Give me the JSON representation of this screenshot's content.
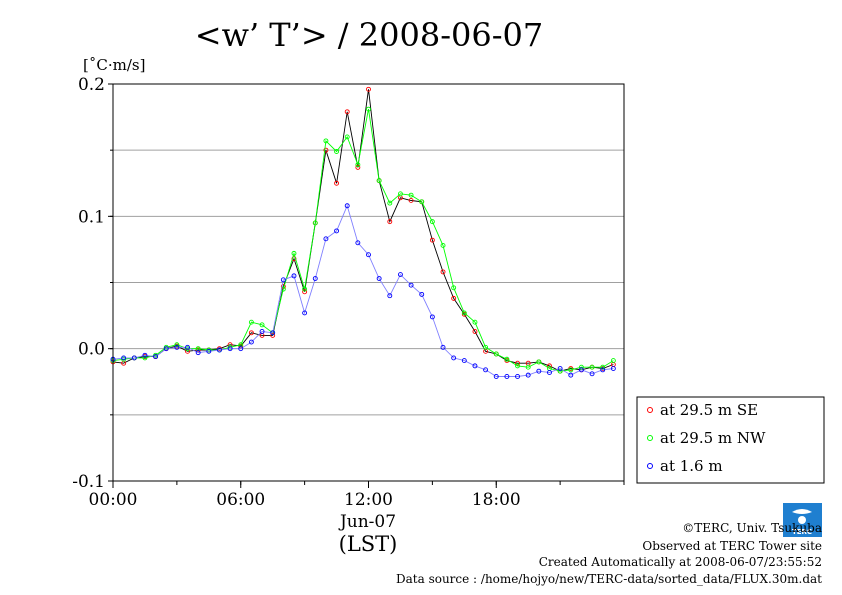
{
  "chart_data": {
    "type": "line",
    "title": "<w’ T’> / 2008-06-07",
    "unit_label": "[˚C·m/s]",
    "ylim": [
      -0.1,
      0.2
    ],
    "y_ticks": [
      {
        "value": 0.2,
        "label": "0.2"
      },
      {
        "value": 0.1,
        "label": "0.1"
      },
      {
        "value": 0.0,
        "label": "0.0"
      },
      {
        "value": -0.1,
        "label": "-0.1"
      }
    ],
    "y_gridlines": [
      0.15,
      0.1,
      0.05,
      0.0,
      -0.05
    ],
    "xlim": [
      0,
      24
    ],
    "x_ticks": [
      {
        "value": 0,
        "label": "00:00"
      },
      {
        "value": 6,
        "label": "06:00"
      },
      {
        "value": 12,
        "label": "12:00"
      },
      {
        "value": 18,
        "label": "18:00"
      }
    ],
    "xlabel_date": "Jun-07",
    "xlabel": "(LST)",
    "grid": true,
    "legend_position": "right-bottom",
    "x": [
      0,
      0.5,
      1,
      1.5,
      2,
      2.5,
      3,
      3.5,
      4,
      4.5,
      5,
      5.5,
      6,
      6.5,
      7,
      7.5,
      8,
      8.5,
      9,
      9.5,
      10,
      10.5,
      11,
      11.5,
      12,
      12.5,
      13,
      13.5,
      14,
      14.5,
      15,
      15.5,
      16,
      16.5,
      17,
      17.5,
      18,
      18.5,
      19,
      19.5,
      20,
      20.5,
      21,
      21.5,
      22,
      22.5,
      23,
      23.5
    ],
    "series": [
      {
        "name": "at 29.5 m SE",
        "color": "#ff0000",
        "line_color": "#000000",
        "values": [
          -0.01,
          -0.011,
          -0.007,
          -0.006,
          -0.006,
          0.0,
          0.002,
          -0.002,
          -0.001,
          -0.001,
          0.0,
          0.003,
          0.002,
          0.012,
          0.01,
          0.01,
          0.047,
          0.068,
          0.043,
          0.095,
          0.15,
          0.125,
          0.179,
          0.137,
          0.196,
          0.127,
          0.096,
          0.114,
          0.112,
          0.111,
          0.082,
          0.058,
          0.038,
          0.026,
          0.013,
          -0.002,
          -0.004,
          -0.009,
          -0.011,
          -0.011,
          -0.01,
          -0.013,
          -0.017,
          -0.015,
          -0.016,
          -0.014,
          -0.015,
          -0.012
        ]
      },
      {
        "name": "at 29.5 m NW",
        "color": "#00ff00",
        "line_color": "#00ff00",
        "values": [
          -0.009,
          -0.008,
          -0.007,
          -0.007,
          -0.005,
          0.001,
          0.003,
          0.0,
          0.0,
          -0.001,
          -0.001,
          0.001,
          0.003,
          0.02,
          0.018,
          0.012,
          0.045,
          0.072,
          0.045,
          0.095,
          0.157,
          0.149,
          0.16,
          0.139,
          0.181,
          0.127,
          0.11,
          0.117,
          0.116,
          0.111,
          0.096,
          0.078,
          0.046,
          0.027,
          0.02,
          0.001,
          -0.004,
          -0.008,
          -0.013,
          -0.014,
          -0.01,
          -0.015,
          -0.017,
          -0.016,
          -0.014,
          -0.014,
          -0.014,
          -0.009
        ]
      },
      {
        "name": "at 1.6 m",
        "color": "#0000ff",
        "line_color": "#8080ff",
        "values": [
          -0.008,
          -0.007,
          -0.007,
          -0.005,
          -0.006,
          0.0,
          0.001,
          0.001,
          -0.003,
          -0.002,
          -0.001,
          0.0,
          0.0,
          0.005,
          0.013,
          0.012,
          0.052,
          0.055,
          0.027,
          0.053,
          0.083,
          0.089,
          0.108,
          0.08,
          0.071,
          0.053,
          0.04,
          0.056,
          0.048,
          0.041,
          0.024,
          0.001,
          -0.007,
          -0.009,
          -0.013,
          -0.016,
          -0.021,
          -0.021,
          -0.021,
          -0.02,
          -0.017,
          -0.018,
          -0.015,
          -0.02,
          -0.016,
          -0.019,
          -0.016,
          -0.015
        ]
      }
    ]
  },
  "footer": {
    "copyright": "©TERC, Univ. Tsukuba",
    "site": "Observed at TERC Tower site",
    "created": "Created Automatically at 2008-06-07/23:55:52",
    "source": "Data source : /home/hojyo/new/TERC-data/sorted_data/FLUX.30m.dat",
    "logo_text": "TERC"
  }
}
